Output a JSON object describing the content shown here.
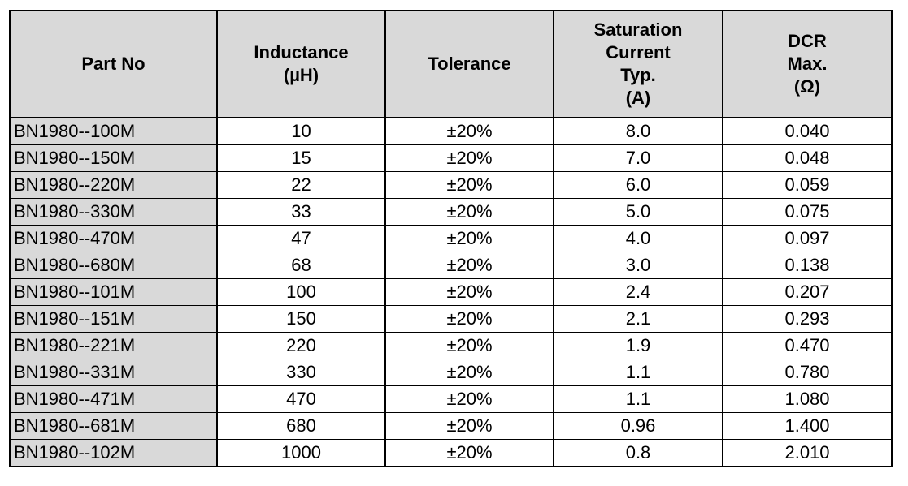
{
  "table": {
    "headers": {
      "part_no": [
        "Part No"
      ],
      "inductance": [
        "Inductance",
        "(µH)"
      ],
      "tolerance": [
        "Tolerance"
      ],
      "saturation": [
        "Saturation",
        "Current",
        "Typ.",
        "(A)"
      ],
      "dcr": [
        "DCR",
        "Max.",
        "(Ω)"
      ]
    },
    "rows": [
      {
        "part": "BN1980--100M",
        "inductance": "10",
        "tolerance": "±20%",
        "saturation": "8.0",
        "dcr": "0.040"
      },
      {
        "part": "BN1980--150M",
        "inductance": "15",
        "tolerance": "±20%",
        "saturation": "7.0",
        "dcr": "0.048"
      },
      {
        "part": "BN1980--220M",
        "inductance": "22",
        "tolerance": "±20%",
        "saturation": "6.0",
        "dcr": "0.059"
      },
      {
        "part": "BN1980--330M",
        "inductance": "33",
        "tolerance": "±20%",
        "saturation": "5.0",
        "dcr": "0.075"
      },
      {
        "part": "BN1980--470M",
        "inductance": "47",
        "tolerance": "±20%",
        "saturation": "4.0",
        "dcr": "0.097"
      },
      {
        "part": "BN1980--680M",
        "inductance": "68",
        "tolerance": "±20%",
        "saturation": "3.0",
        "dcr": "0.138"
      },
      {
        "part": "BN1980--101M",
        "inductance": "100",
        "tolerance": "±20%",
        "saturation": "2.4",
        "dcr": "0.207"
      },
      {
        "part": "BN1980--151M",
        "inductance": "150",
        "tolerance": "±20%",
        "saturation": "2.1",
        "dcr": "0.293"
      },
      {
        "part": "BN1980--221M",
        "inductance": "220",
        "tolerance": "±20%",
        "saturation": "1.9",
        "dcr": "0.470"
      },
      {
        "part": "BN1980--331M",
        "inductance": "330",
        "tolerance": "±20%",
        "saturation": "1.1",
        "dcr": "0.780"
      },
      {
        "part": "BN1980--471M",
        "inductance": "470",
        "tolerance": "±20%",
        "saturation": "1.1",
        "dcr": "1.080"
      },
      {
        "part": "BN1980--681M",
        "inductance": "680",
        "tolerance": "±20%",
        "saturation": "0.96",
        "dcr": "1.400"
      },
      {
        "part": "BN1980--102M",
        "inductance": "1000",
        "tolerance": "±20%",
        "saturation": "0.8",
        "dcr": "2.010"
      }
    ]
  }
}
